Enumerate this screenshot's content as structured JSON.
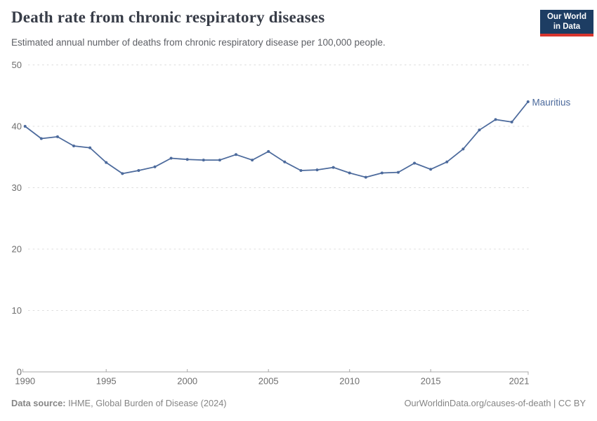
{
  "header": {
    "title": "Death rate from chronic respiratory diseases",
    "subtitle": "Estimated annual number of deaths from chronic respiratory disease per 100,000 people."
  },
  "logo": {
    "line1": "Our World",
    "line2": "in Data",
    "bg_color": "#1d3d63",
    "accent_color": "#d8352e"
  },
  "colors": {
    "line": "#4c6a9c",
    "grid": "#dcdcdc",
    "axis": "#a8a8a8",
    "tick_label": "#6e6e6e"
  },
  "chart_data": {
    "type": "line",
    "title": "Death rate from chronic respiratory diseases",
    "entity": "Mauritius",
    "x": [
      1990,
      1991,
      1992,
      1993,
      1994,
      1995,
      1996,
      1997,
      1998,
      1999,
      2000,
      2001,
      2002,
      2003,
      2004,
      2005,
      2006,
      2007,
      2008,
      2009,
      2010,
      2011,
      2012,
      2013,
      2014,
      2015,
      2016,
      2017,
      2018,
      2019,
      2020,
      2021
    ],
    "values": [
      40.0,
      38.0,
      38.3,
      36.8,
      36.5,
      34.1,
      32.3,
      32.8,
      33.4,
      34.8,
      34.6,
      34.5,
      34.5,
      35.4,
      34.5,
      35.9,
      34.2,
      32.8,
      32.9,
      33.3,
      32.4,
      31.7,
      32.4,
      32.5,
      34.0,
      33.0,
      34.2,
      36.3,
      39.4,
      41.1,
      40.7,
      44.0
    ],
    "xlabel": "",
    "ylabel": "",
    "ylim": [
      0,
      50
    ],
    "yticks": [
      0,
      10,
      20,
      30,
      40,
      50
    ],
    "xticks": [
      1990,
      1995,
      2000,
      2005,
      2010,
      2015,
      2021
    ],
    "grid": "horizontal-dashed",
    "legend_position": "end-of-line-label"
  },
  "footer": {
    "source_label": "Data source:",
    "source_value": "IHME, Global Burden of Disease (2024)",
    "url": "OurWorldinData.org/causes-of-death",
    "separator": " | ",
    "license": "CC BY"
  }
}
